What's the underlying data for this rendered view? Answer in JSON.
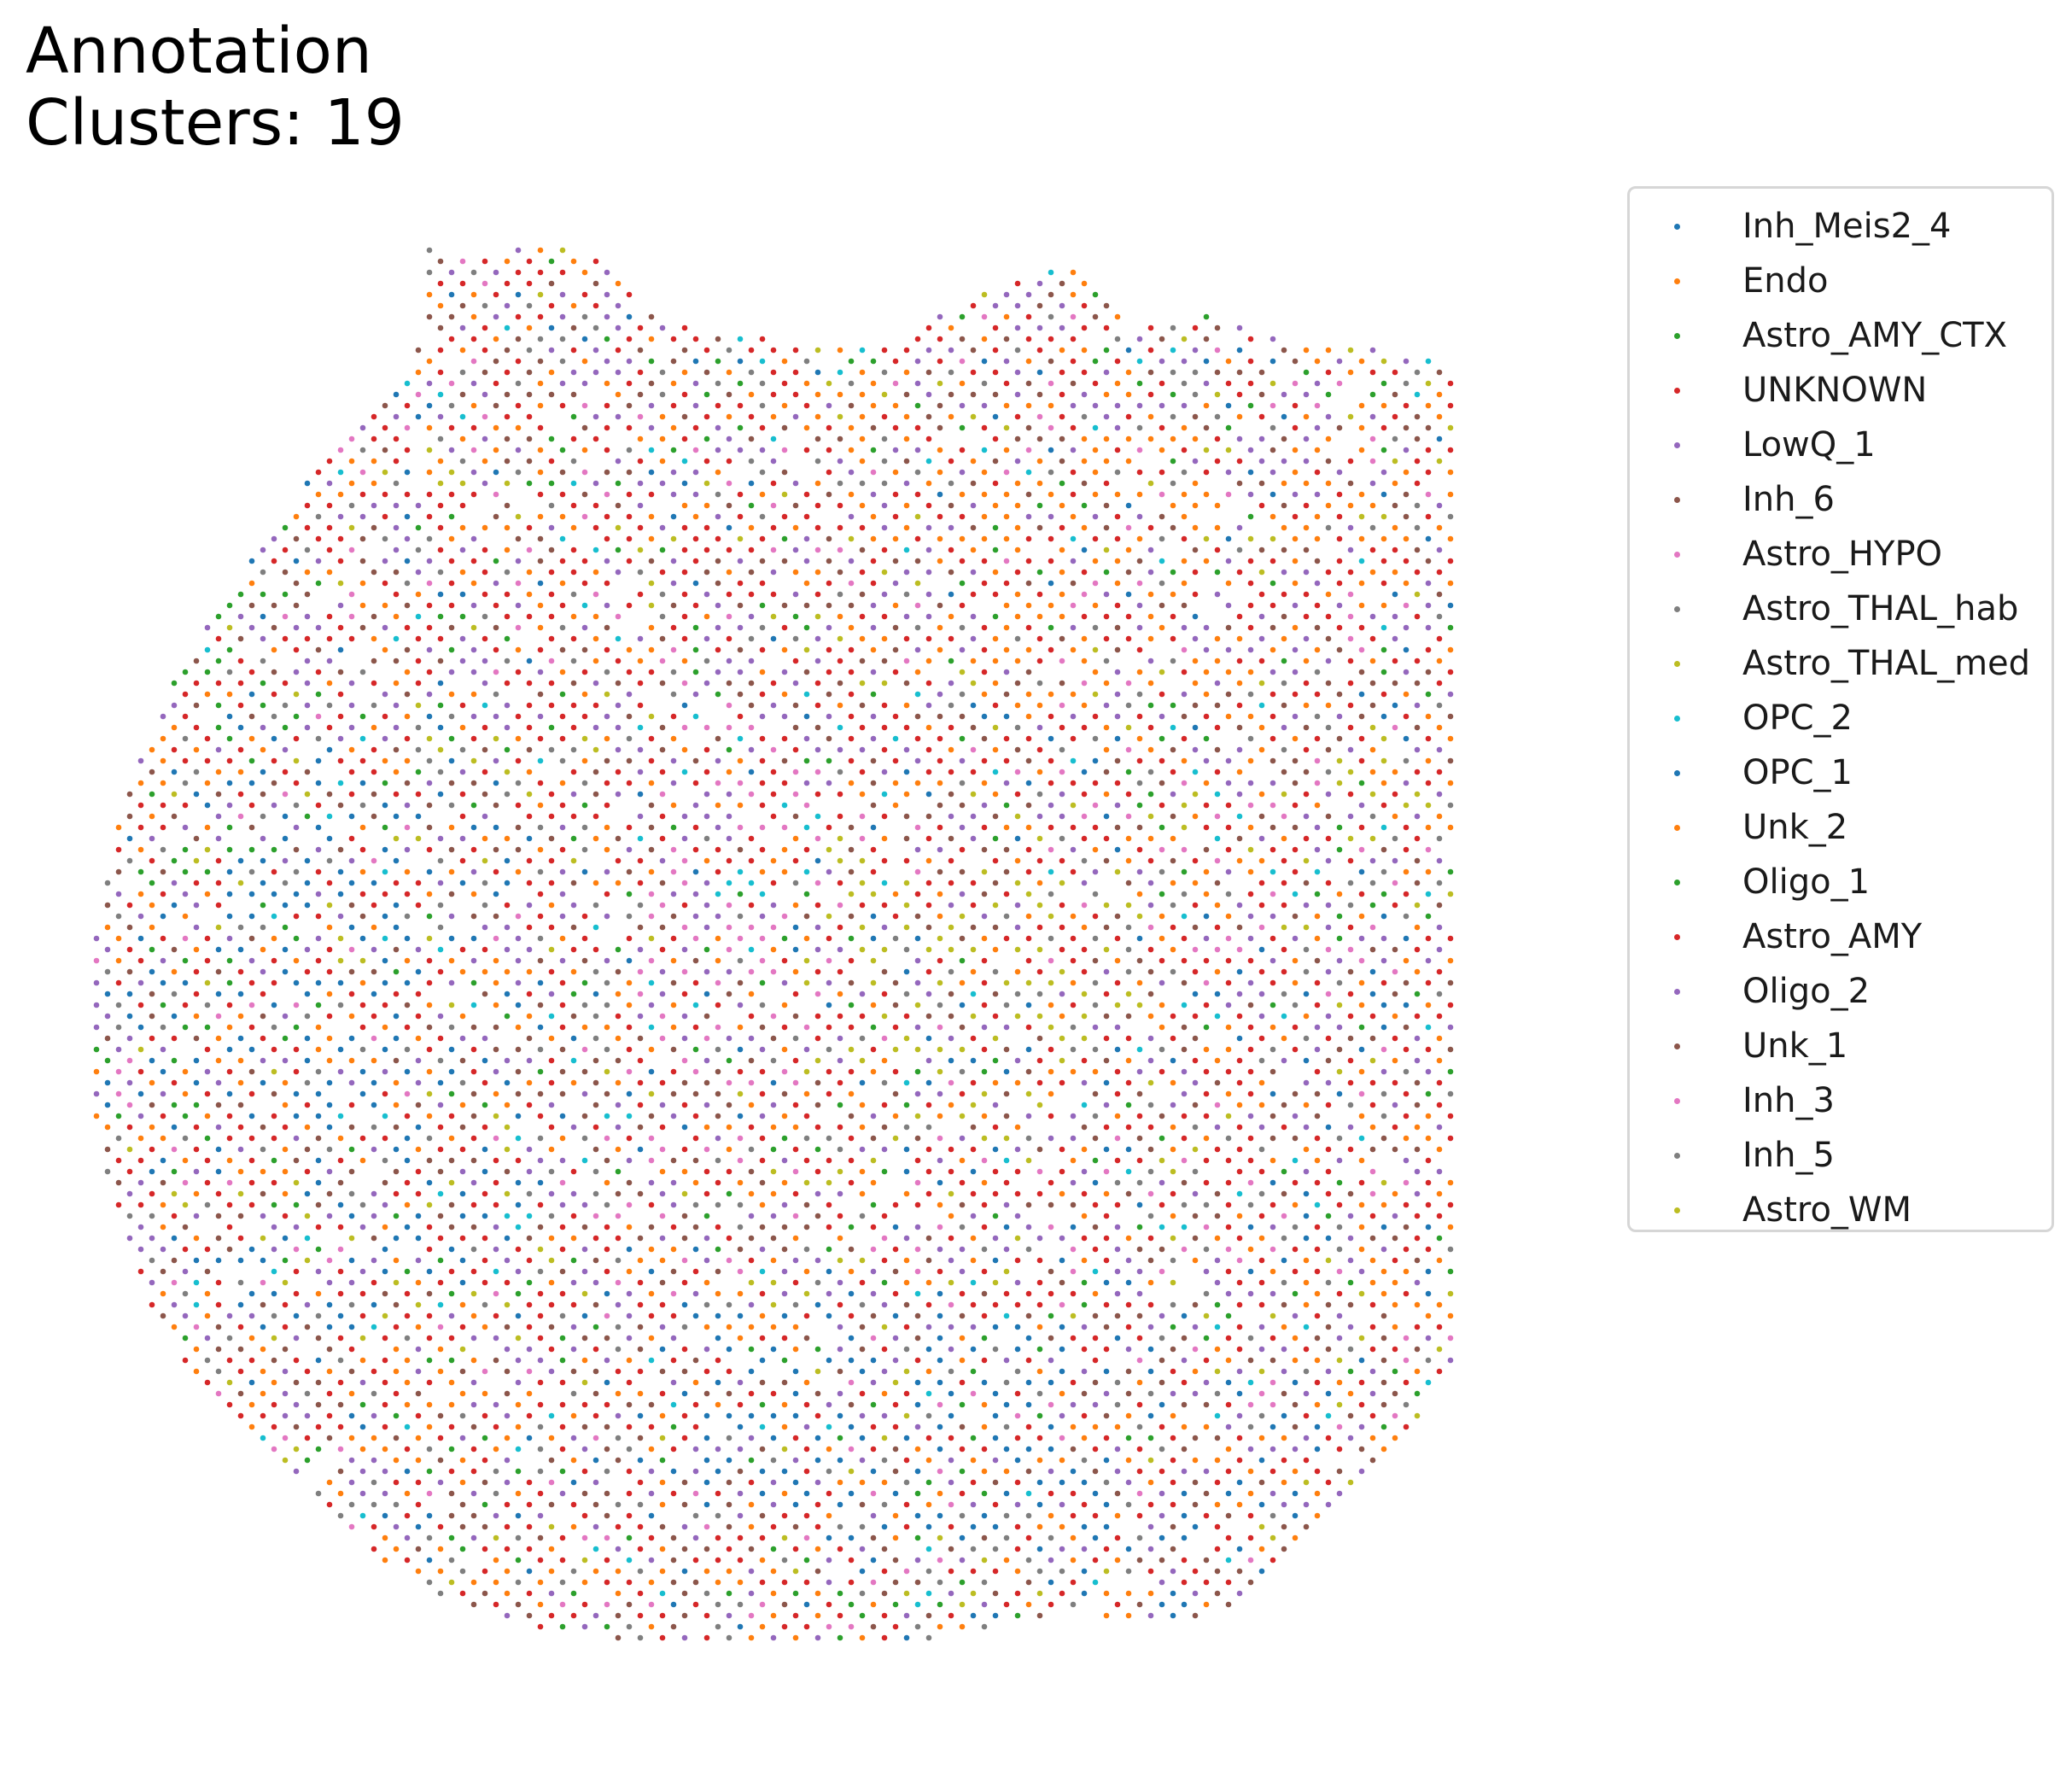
{
  "title": {
    "line1": "Annotation",
    "line2": "Clusters: 19"
  },
  "chart_data": {
    "type": "scatter",
    "title": "Annotation\nClusters: 19",
    "xlabel": "",
    "ylabel": "",
    "axes_visible": false,
    "grid": false,
    "legend_placement": "outside-right",
    "region": {
      "description_hidden": true,
      "xlim": [
        0,
        1
      ],
      "ylim": [
        0,
        1
      ]
    },
    "series": [
      {
        "name": "Inh_Meis2_4",
        "color": "#1f77b4"
      },
      {
        "name": "Endo",
        "color": "#ff7f0e"
      },
      {
        "name": "Astro_AMY_CTX",
        "color": "#2ca02c"
      },
      {
        "name": "UNKNOWN",
        "color": "#d62728"
      },
      {
        "name": "LowQ_1",
        "color": "#9467bd"
      },
      {
        "name": "Inh_6",
        "color": "#8c564b"
      },
      {
        "name": "Astro_HYPO",
        "color": "#e377c2"
      },
      {
        "name": "Astro_THAL_hab",
        "color": "#7f7f7f"
      },
      {
        "name": "Astro_THAL_med",
        "color": "#bcbd22"
      },
      {
        "name": "OPC_2",
        "color": "#17becf"
      },
      {
        "name": "OPC_1",
        "color": "#1f77b4"
      },
      {
        "name": "Unk_2",
        "color": "#ff7f0e"
      },
      {
        "name": "Oligo_1",
        "color": "#2ca02c"
      },
      {
        "name": "Astro_AMY",
        "color": "#d62728"
      },
      {
        "name": "Oligo_2",
        "color": "#9467bd"
      },
      {
        "name": "Unk_1",
        "color": "#8c564b"
      },
      {
        "name": "Inh_3",
        "color": "#e377c2"
      },
      {
        "name": "Inh_5",
        "color": "#7f7f7f"
      },
      {
        "name": "Astro_WM",
        "color": "#bcbd22"
      }
    ]
  }
}
